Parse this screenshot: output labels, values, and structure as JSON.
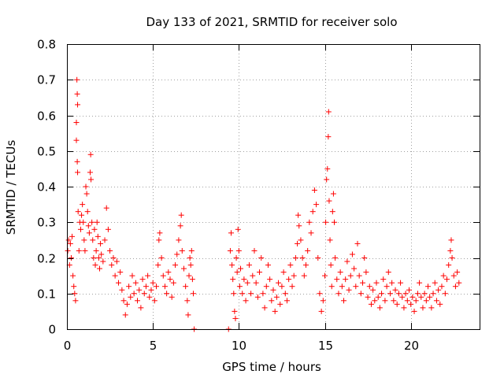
{
  "chart_data": {
    "type": "scatter",
    "title": "Day 133 of 2021, SRMTID for receiver solo",
    "xlabel": "GPS time / hours",
    "ylabel": "SRMTID / TECUs",
    "xlim": [
      0,
      24
    ],
    "ylim": [
      0,
      0.8
    ],
    "xticks": [
      0,
      5,
      10,
      15,
      20
    ],
    "xtick_labels": [
      "0",
      "5",
      "10",
      "15",
      "20"
    ],
    "yticks": [
      0,
      0.1,
      0.2,
      0.3,
      0.4,
      0.5,
      0.6,
      0.7,
      0.8
    ],
    "ytick_labels": [
      "0",
      "0.1",
      "0.2",
      "0.3",
      "0.4",
      "0.5",
      "0.6",
      "0.7",
      "0.8"
    ],
    "grid": true,
    "marker": "+",
    "color": "#ff0000",
    "series": [
      {
        "name": "SRMTID",
        "points": [
          [
            0.05,
            0.22
          ],
          [
            0.1,
            0.25
          ],
          [
            0.15,
            0.18
          ],
          [
            0.2,
            0.24
          ],
          [
            0.25,
            0.2
          ],
          [
            0.3,
            0.26
          ],
          [
            0.35,
            0.15
          ],
          [
            0.4,
            0.12
          ],
          [
            0.45,
            0.1
          ],
          [
            0.5,
            0.08
          ],
          [
            0.55,
            0.58
          ],
          [
            0.58,
            0.7
          ],
          [
            0.6,
            0.66
          ],
          [
            0.62,
            0.63
          ],
          [
            0.55,
            0.53
          ],
          [
            0.6,
            0.47
          ],
          [
            0.62,
            0.44
          ],
          [
            0.65,
            0.33
          ],
          [
            0.7,
            0.22
          ],
          [
            0.75,
            0.3
          ],
          [
            0.8,
            0.28
          ],
          [
            0.85,
            0.32
          ],
          [
            0.9,
            0.35
          ],
          [
            0.95,
            0.3
          ],
          [
            1.0,
            0.25
          ],
          [
            1.05,
            0.22
          ],
          [
            1.1,
            0.4
          ],
          [
            1.15,
            0.38
          ],
          [
            1.2,
            0.33
          ],
          [
            1.25,
            0.29
          ],
          [
            1.3,
            0.27
          ],
          [
            1.35,
            0.44
          ],
          [
            1.38,
            0.49
          ],
          [
            1.4,
            0.42
          ],
          [
            1.45,
            0.3
          ],
          [
            1.5,
            0.25
          ],
          [
            1.55,
            0.2
          ],
          [
            1.6,
            0.28
          ],
          [
            1.65,
            0.18
          ],
          [
            1.7,
            0.22
          ],
          [
            1.75,
            0.3
          ],
          [
            1.8,
            0.26
          ],
          [
            1.85,
            0.2
          ],
          [
            1.9,
            0.17
          ],
          [
            1.95,
            0.24
          ],
          [
            2.0,
            0.21
          ],
          [
            2.1,
            0.19
          ],
          [
            2.2,
            0.25
          ],
          [
            2.3,
            0.34
          ],
          [
            2.4,
            0.28
          ],
          [
            2.5,
            0.22
          ],
          [
            2.6,
            0.18
          ],
          [
            2.7,
            0.2
          ],
          [
            2.8,
            0.15
          ],
          [
            2.9,
            0.19
          ],
          [
            3.0,
            0.13
          ],
          [
            3.1,
            0.16
          ],
          [
            3.2,
            0.11
          ],
          [
            3.3,
            0.08
          ],
          [
            3.4,
            0.04
          ],
          [
            3.5,
            0.07
          ],
          [
            3.6,
            0.12
          ],
          [
            3.7,
            0.09
          ],
          [
            3.8,
            0.15
          ],
          [
            3.9,
            0.1
          ],
          [
            4.0,
            0.13
          ],
          [
            4.1,
            0.08
          ],
          [
            4.2,
            0.11
          ],
          [
            4.3,
            0.06
          ],
          [
            4.4,
            0.14
          ],
          [
            4.5,
            0.1
          ],
          [
            4.6,
            0.12
          ],
          [
            4.7,
            0.15
          ],
          [
            4.8,
            0.09
          ],
          [
            4.9,
            0.11
          ],
          [
            5.0,
            0.13
          ],
          [
            5.1,
            0.08
          ],
          [
            5.2,
            0.12
          ],
          [
            5.3,
            0.18
          ],
          [
            5.35,
            0.25
          ],
          [
            5.4,
            0.27
          ],
          [
            5.5,
            0.2
          ],
          [
            5.6,
            0.15
          ],
          [
            5.7,
            0.12
          ],
          [
            5.8,
            0.1
          ],
          [
            5.9,
            0.16
          ],
          [
            6.0,
            0.14
          ],
          [
            6.1,
            0.09
          ],
          [
            6.2,
            0.13
          ],
          [
            6.3,
            0.18
          ],
          [
            6.4,
            0.21
          ],
          [
            6.5,
            0.25
          ],
          [
            6.6,
            0.29
          ],
          [
            6.65,
            0.32
          ],
          [
            6.7,
            0.22
          ],
          [
            6.8,
            0.17
          ],
          [
            6.9,
            0.12
          ],
          [
            7.0,
            0.08
          ],
          [
            7.05,
            0.04
          ],
          [
            7.1,
            0.15
          ],
          [
            7.15,
            0.2
          ],
          [
            7.2,
            0.18
          ],
          [
            7.25,
            0.22
          ],
          [
            7.3,
            0.14
          ],
          [
            7.35,
            0.1
          ],
          [
            7.4,
            0.0
          ],
          [
            9.4,
            0.0
          ],
          [
            9.5,
            0.22
          ],
          [
            9.55,
            0.27
          ],
          [
            9.6,
            0.18
          ],
          [
            9.65,
            0.14
          ],
          [
            9.7,
            0.1
          ],
          [
            9.75,
            0.05
          ],
          [
            9.8,
            0.03
          ],
          [
            9.85,
            0.2
          ],
          [
            9.9,
            0.16
          ],
          [
            9.95,
            0.28
          ],
          [
            10.0,
            0.22
          ],
          [
            10.05,
            0.12
          ],
          [
            10.1,
            0.17
          ],
          [
            10.2,
            0.1
          ],
          [
            10.3,
            0.14
          ],
          [
            10.4,
            0.08
          ],
          [
            10.5,
            0.13
          ],
          [
            10.6,
            0.18
          ],
          [
            10.7,
            0.1
          ],
          [
            10.8,
            0.15
          ],
          [
            10.9,
            0.22
          ],
          [
            11.0,
            0.13
          ],
          [
            11.1,
            0.09
          ],
          [
            11.2,
            0.16
          ],
          [
            11.3,
            0.2
          ],
          [
            11.4,
            0.1
          ],
          [
            11.5,
            0.06
          ],
          [
            11.6,
            0.12
          ],
          [
            11.7,
            0.18
          ],
          [
            11.8,
            0.14
          ],
          [
            11.9,
            0.08
          ],
          [
            12.0,
            0.11
          ],
          [
            12.1,
            0.05
          ],
          [
            12.2,
            0.09
          ],
          [
            12.3,
            0.13
          ],
          [
            12.4,
            0.07
          ],
          [
            12.5,
            0.12
          ],
          [
            12.6,
            0.16
          ],
          [
            12.7,
            0.1
          ],
          [
            12.8,
            0.08
          ],
          [
            12.9,
            0.14
          ],
          [
            13.0,
            0.18
          ],
          [
            13.1,
            0.12
          ],
          [
            13.2,
            0.15
          ],
          [
            13.3,
            0.2
          ],
          [
            13.4,
            0.24
          ],
          [
            13.45,
            0.32
          ],
          [
            13.5,
            0.29
          ],
          [
            13.6,
            0.25
          ],
          [
            13.7,
            0.2
          ],
          [
            13.8,
            0.15
          ],
          [
            13.9,
            0.18
          ],
          [
            14.0,
            0.22
          ],
          [
            14.1,
            0.3
          ],
          [
            14.2,
            0.27
          ],
          [
            14.3,
            0.33
          ],
          [
            14.4,
            0.39
          ],
          [
            14.5,
            0.35
          ],
          [
            14.6,
            0.2
          ],
          [
            14.7,
            0.1
          ],
          [
            14.8,
            0.05
          ],
          [
            14.9,
            0.08
          ],
          [
            15.0,
            0.15
          ],
          [
            15.05,
            0.3
          ],
          [
            15.1,
            0.42
          ],
          [
            15.15,
            0.45
          ],
          [
            15.2,
            0.54
          ],
          [
            15.22,
            0.61
          ],
          [
            15.25,
            0.36
          ],
          [
            15.3,
            0.25
          ],
          [
            15.35,
            0.18
          ],
          [
            15.4,
            0.12
          ],
          [
            15.45,
            0.33
          ],
          [
            15.5,
            0.38
          ],
          [
            15.55,
            0.3
          ],
          [
            15.6,
            0.2
          ],
          [
            15.7,
            0.14
          ],
          [
            15.8,
            0.1
          ],
          [
            15.9,
            0.16
          ],
          [
            16.0,
            0.12
          ],
          [
            16.1,
            0.08
          ],
          [
            16.2,
            0.14
          ],
          [
            16.3,
            0.19
          ],
          [
            16.4,
            0.11
          ],
          [
            16.5,
            0.15
          ],
          [
            16.6,
            0.21
          ],
          [
            16.7,
            0.17
          ],
          [
            16.8,
            0.12
          ],
          [
            16.9,
            0.24
          ],
          [
            17.0,
            0.15
          ],
          [
            17.1,
            0.1
          ],
          [
            17.2,
            0.13
          ],
          [
            17.3,
            0.2
          ],
          [
            17.4,
            0.16
          ],
          [
            17.5,
            0.09
          ],
          [
            17.6,
            0.12
          ],
          [
            17.7,
            0.07
          ],
          [
            17.8,
            0.11
          ],
          [
            17.9,
            0.08
          ],
          [
            18.0,
            0.13
          ],
          [
            18.1,
            0.09
          ],
          [
            18.2,
            0.06
          ],
          [
            18.3,
            0.1
          ],
          [
            18.4,
            0.14
          ],
          [
            18.5,
            0.08
          ],
          [
            18.6,
            0.12
          ],
          [
            18.7,
            0.16
          ],
          [
            18.8,
            0.1
          ],
          [
            18.9,
            0.13
          ],
          [
            19.0,
            0.08
          ],
          [
            19.1,
            0.11
          ],
          [
            19.2,
            0.07
          ],
          [
            19.3,
            0.1
          ],
          [
            19.4,
            0.13
          ],
          [
            19.5,
            0.09
          ],
          [
            19.6,
            0.06
          ],
          [
            19.7,
            0.1
          ],
          [
            19.8,
            0.08
          ],
          [
            19.9,
            0.11
          ],
          [
            20.0,
            0.07
          ],
          [
            20.1,
            0.09
          ],
          [
            20.2,
            0.05
          ],
          [
            20.3,
            0.08
          ],
          [
            20.4,
            0.1
          ],
          [
            20.5,
            0.13
          ],
          [
            20.6,
            0.09
          ],
          [
            20.7,
            0.06
          ],
          [
            20.8,
            0.1
          ],
          [
            20.9,
            0.08
          ],
          [
            21.0,
            0.12
          ],
          [
            21.1,
            0.09
          ],
          [
            21.2,
            0.06
          ],
          [
            21.3,
            0.1
          ],
          [
            21.4,
            0.13
          ],
          [
            21.5,
            0.08
          ],
          [
            21.6,
            0.11
          ],
          [
            21.7,
            0.07
          ],
          [
            21.8,
            0.12
          ],
          [
            21.9,
            0.15
          ],
          [
            22.0,
            0.1
          ],
          [
            22.1,
            0.14
          ],
          [
            22.2,
            0.18
          ],
          [
            22.3,
            0.22
          ],
          [
            22.35,
            0.25
          ],
          [
            22.4,
            0.2
          ],
          [
            22.5,
            0.15
          ],
          [
            22.6,
            0.12
          ],
          [
            22.7,
            0.16
          ],
          [
            22.8,
            0.13
          ]
        ]
      }
    ]
  }
}
